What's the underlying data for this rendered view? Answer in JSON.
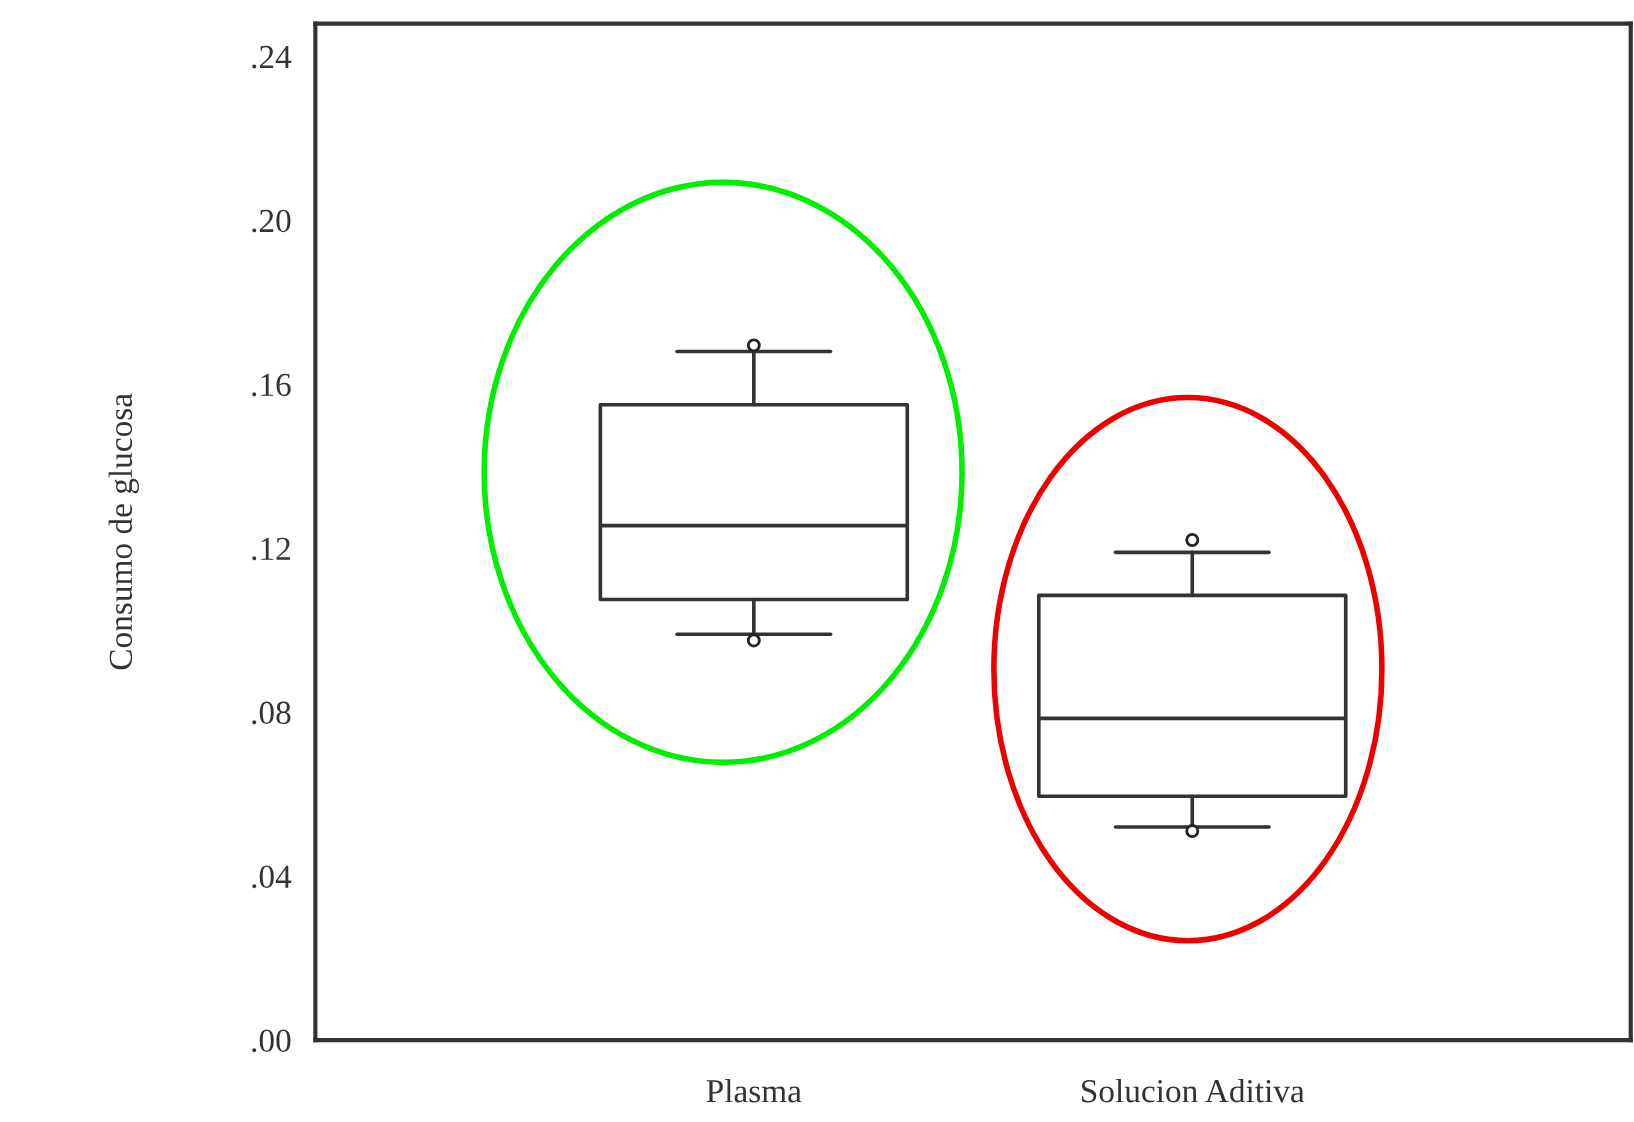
{
  "chart_data": {
    "type": "box",
    "ylabel": "Consumo de glucosa",
    "categories": [
      "Plasma",
      "Solucion Aditiva"
    ],
    "boxes": [
      {
        "low": 0.099,
        "q1": 0.1075,
        "median": 0.1255,
        "q3": 0.155,
        "high": 0.168,
        "outliers": [
          0.0975,
          0.1695
        ]
      },
      {
        "low": 0.052,
        "q1": 0.0595,
        "median": 0.0785,
        "q3": 0.1085,
        "high": 0.119,
        "outliers": [
          0.051,
          0.122
        ]
      }
    ],
    "ylim": [
      0,
      0.248
    ],
    "yticks": [
      {
        "value": 0,
        "label": ".00"
      },
      {
        "value": 0.04,
        "label": ".04"
      },
      {
        "value": 0.08,
        "label": ".08"
      },
      {
        "value": 0.12,
        "label": ".12"
      },
      {
        "value": 0.16,
        "label": ".16"
      },
      {
        "value": 0.2,
        "label": ".20"
      },
      {
        "value": 0.24,
        "label": ".24"
      }
    ],
    "grid": false
  }
}
